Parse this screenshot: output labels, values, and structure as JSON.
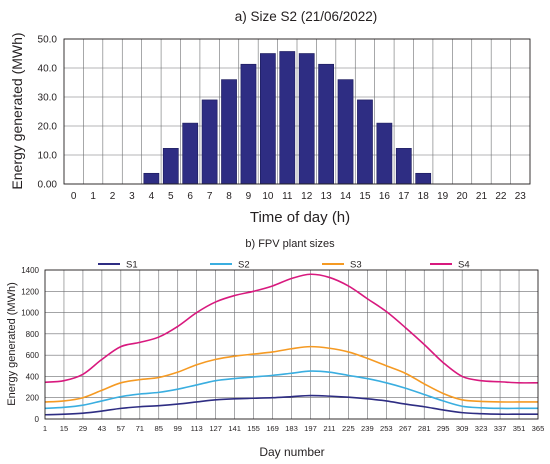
{
  "chart_data": [
    {
      "type": "bar",
      "title": "a) Size S2 (21/06/2022)",
      "xlabel": "Time of day (h)",
      "ylabel": "Energy generated (MWh)",
      "ylim": [
        0,
        50
      ],
      "yticks": [
        "0.00",
        "10.0",
        "20.0",
        "30.0",
        "40.0",
        "50.0"
      ],
      "grid": true,
      "categories": [
        "0",
        "1",
        "2",
        "3",
        "4",
        "5",
        "6",
        "7",
        "8",
        "9",
        "10",
        "11",
        "12",
        "13",
        "14",
        "15",
        "16",
        "17",
        "18",
        "19",
        "20",
        "21",
        "22",
        "23"
      ],
      "values": [
        0,
        0,
        0,
        0,
        3.7,
        12.3,
        21.0,
        29.0,
        36.0,
        41.3,
        45.0,
        45.7,
        45.0,
        41.3,
        36.0,
        29.0,
        21.0,
        12.3,
        3.7,
        0,
        0,
        0,
        0,
        0
      ],
      "bar_color": "#2e2d83"
    },
    {
      "type": "line",
      "title": "b) FPV plant sizes",
      "xlabel": "Day number",
      "ylabel": "Energy generated (MWh)",
      "ylim": [
        0,
        1400
      ],
      "yticks": [
        "0",
        "200",
        "400",
        "600",
        "800",
        "1000",
        "1200",
        "1400"
      ],
      "xlim": [
        1,
        365
      ],
      "xticks": [
        "1",
        "15",
        "29",
        "43",
        "57",
        "71",
        "85",
        "99",
        "113",
        "127",
        "141",
        "155",
        "169",
        "183",
        "197",
        "211",
        "225",
        "239",
        "253",
        "267",
        "281",
        "295",
        "309",
        "323",
        "337",
        "351",
        "365"
      ],
      "grid": true,
      "legend": "top",
      "x": [
        1,
        15,
        29,
        43,
        57,
        71,
        85,
        99,
        113,
        127,
        141,
        155,
        169,
        183,
        197,
        211,
        225,
        239,
        253,
        267,
        281,
        295,
        309,
        323,
        337,
        351,
        365
      ],
      "series": [
        {
          "name": "S1",
          "color": "#2e2d83",
          "values": [
            40,
            45,
            55,
            75,
            100,
            115,
            125,
            140,
            160,
            180,
            190,
            195,
            200,
            210,
            220,
            215,
            205,
            190,
            170,
            140,
            115,
            85,
            60,
            50,
            45,
            45,
            45
          ]
        },
        {
          "name": "S2",
          "color": "#3aaee0",
          "values": [
            100,
            110,
            130,
            170,
            210,
            235,
            250,
            280,
            320,
            360,
            380,
            395,
            410,
            430,
            450,
            440,
            410,
            380,
            340,
            290,
            230,
            170,
            120,
            105,
            100,
            100,
            100
          ]
        },
        {
          "name": "S3",
          "color": "#f59a23",
          "values": [
            160,
            170,
            200,
            270,
            340,
            370,
            390,
            440,
            510,
            560,
            590,
            610,
            630,
            660,
            680,
            665,
            630,
            570,
            500,
            430,
            330,
            240,
            180,
            165,
            160,
            160,
            160
          ]
        },
        {
          "name": "S4",
          "color": "#d8197e",
          "values": [
            345,
            360,
            420,
            560,
            680,
            720,
            770,
            870,
            1000,
            1100,
            1160,
            1200,
            1250,
            1320,
            1360,
            1330,
            1250,
            1130,
            1010,
            860,
            700,
            530,
            400,
            360,
            350,
            340,
            340
          ]
        }
      ]
    }
  ]
}
